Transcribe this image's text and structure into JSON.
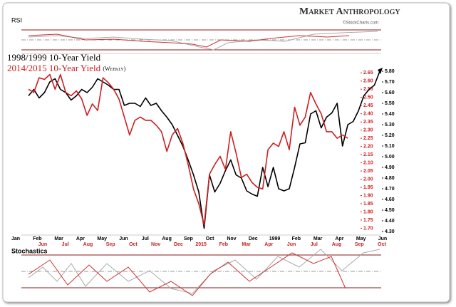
{
  "chart_data": {
    "type": "line",
    "brand": "Market Anthropology",
    "source": "©StockCharts.com",
    "top_panel_label": "RSI",
    "bottom_panel_label": "Stochastics",
    "annotation": "(Weekly)",
    "x_labels_1998": [
      "Jan",
      "Feb",
      "Mar",
      "Apr",
      "May",
      "Jun",
      "Jul",
      "Aug",
      "Sep",
      "Oct",
      "Nov",
      "Dec",
      "1999",
      "Feb",
      "Mar",
      "Apr",
      "May",
      "Jun"
    ],
    "x_labels_2014": [
      "Jun",
      "Jul",
      "Aug",
      "Sep",
      "Oct",
      "Nov",
      "Dec",
      "2015",
      "Feb",
      "Mar",
      "Apr",
      "Jun",
      "Jul",
      "Aug",
      "Sep",
      "Oct"
    ],
    "ylim": [
      4.3,
      5.8
    ],
    "yticks": [
      {
        "value": 4.3,
        "label": "4.30"
      },
      {
        "value": 4.4,
        "label": "4.40"
      },
      {
        "value": 4.5,
        "label": "4.50"
      },
      {
        "value": 4.6,
        "label": "4.60"
      },
      {
        "value": 4.7,
        "label": "4.70"
      },
      {
        "value": 4.8,
        "label": "4.80"
      },
      {
        "value": 4.9,
        "label": "4.90"
      },
      {
        "value": 5.0,
        "label": "5.00"
      },
      {
        "value": 5.1,
        "label": "5.10"
      },
      {
        "value": 5.2,
        "label": "5.20"
      },
      {
        "value": 5.3,
        "label": "5.30"
      },
      {
        "value": 5.4,
        "label": "5.40"
      },
      {
        "value": 5.5,
        "label": "5.50"
      },
      {
        "value": 5.6,
        "label": "5.60"
      },
      {
        "value": 5.7,
        "label": "5.70"
      },
      {
        "value": 5.8,
        "label": "5.80"
      }
    ],
    "y2lim": [
      1.68,
      2.66
    ],
    "y2ticks": [
      {
        "value": 1.7,
        "label": "1.70"
      },
      1.75,
      {
        "value": 1.8,
        "label": "1.80"
      },
      1.85,
      {
        "value": 1.9,
        "label": "1.90"
      },
      1.95,
      {
        "value": 2.0,
        "label": "2.00"
      },
      2.05,
      {
        "value": 2.1,
        "label": "2.10"
      },
      2.15,
      {
        "value": 2.2,
        "label": "2.20"
      },
      2.25,
      {
        "value": 2.3,
        "label": "2.30"
      },
      2.35,
      {
        "value": 2.4,
        "label": "2.40"
      },
      2.45,
      {
        "value": 2.5,
        "label": "2.50"
      },
      2.55,
      {
        "value": 2.6,
        "label": "2.60"
      },
      2.65
    ],
    "series": [
      {
        "name": "1998/1999 10-Year Yield",
        "color": "#000000",
        "axis": "y",
        "values": [
          5.57,
          5.63,
          5.55,
          5.6,
          5.7,
          5.73,
          5.63,
          5.6,
          5.53,
          5.57,
          5.63,
          5.6,
          5.65,
          5.73,
          5.7,
          5.67,
          5.63,
          5.63,
          5.48,
          5.5,
          5.5,
          5.47,
          5.55,
          5.48,
          5.5,
          5.43,
          5.37,
          5.3,
          5.2,
          5.1,
          4.97,
          4.83,
          4.67,
          4.33,
          4.83,
          4.67,
          4.75,
          4.87,
          4.97,
          4.83,
          4.8,
          4.68,
          4.65,
          4.63,
          4.9,
          4.72,
          4.9,
          4.7,
          4.68,
          4.7,
          4.9,
          5.12,
          5.13,
          5.4,
          5.43,
          5.27,
          5.37,
          5.41,
          5.5,
          5.1,
          5.3,
          5.33,
          5.43,
          5.57,
          5.63,
          5.67,
          5.8
        ]
      },
      {
        "name": "2014/2015  10-Year Yield",
        "color": "#cc1f1f",
        "axis": "y2",
        "values": [
          2.55,
          2.53,
          2.62,
          2.61,
          2.64,
          2.55,
          2.64,
          2.53,
          2.51,
          2.54,
          2.49,
          2.39,
          2.46,
          2.42,
          2.62,
          2.59,
          2.55,
          2.49,
          2.38,
          2.27,
          2.36,
          2.38,
          2.36,
          2.36,
          2.33,
          2.29,
          2.17,
          2.27,
          2.31,
          2.22,
          2.09,
          1.94,
          1.85,
          1.72,
          2.03,
          2.09,
          2.14,
          2.06,
          2.29,
          2.16,
          2.01,
          2.03,
          1.98,
          1.95,
          1.94,
          2.18,
          2.22,
          2.2,
          2.29,
          2.18,
          2.44,
          2.33,
          2.38,
          2.53,
          2.46,
          2.4,
          2.29,
          2.29,
          2.25,
          2.27,
          2.25
        ]
      }
    ]
  }
}
